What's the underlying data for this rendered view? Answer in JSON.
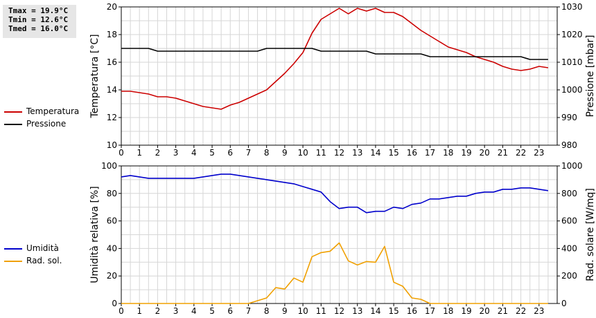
{
  "stats": {
    "tmax": "Tmax = 19.9°C",
    "tmin": "Tmin = 12.6°C",
    "tmed": "Tmed = 16.0°C"
  },
  "chart_data": [
    {
      "type": "line",
      "xlim": [
        0,
        24
      ],
      "xticks": [
        0,
        1,
        2,
        3,
        4,
        5,
        6,
        7,
        8,
        9,
        10,
        11,
        12,
        13,
        14,
        15,
        16,
        17,
        18,
        19,
        20,
        21,
        22,
        23
      ],
      "grid": true,
      "legend_placement": "left",
      "y_left": {
        "label": "Temperatura [°C]",
        "ylim": [
          10,
          20
        ],
        "ticks": [
          10,
          12,
          14,
          16,
          18,
          20
        ]
      },
      "y_right": {
        "label": "Pressione [mbar]",
        "ylim": [
          980,
          1030
        ],
        "ticks": [
          980,
          990,
          1000,
          1010,
          1020,
          1030
        ]
      },
      "series": [
        {
          "name": "Temperatura",
          "color": "#cc0000",
          "axis": "left",
          "x": [
            0,
            0.5,
            1,
            1.5,
            2,
            2.5,
            3,
            3.5,
            4,
            4.5,
            5,
            5.5,
            6,
            6.5,
            7,
            7.5,
            8,
            8.5,
            9,
            9.5,
            10,
            10.5,
            11,
            11.5,
            12,
            12.5,
            13,
            13.5,
            14,
            14.5,
            15,
            15.5,
            16,
            16.5,
            17,
            17.5,
            18,
            18.5,
            19,
            19.5,
            20,
            20.5,
            21,
            21.5,
            22,
            22.5,
            23,
            23.5
          ],
          "values": [
            13.9,
            13.9,
            13.8,
            13.7,
            13.5,
            13.5,
            13.4,
            13.2,
            13.0,
            12.8,
            12.7,
            12.6,
            12.9,
            13.1,
            13.4,
            13.7,
            14.0,
            14.6,
            15.2,
            15.9,
            16.7,
            18.1,
            19.1,
            19.5,
            19.9,
            19.5,
            19.9,
            19.7,
            19.9,
            19.6,
            19.6,
            19.3,
            18.8,
            18.3,
            17.9,
            17.5,
            17.1,
            16.9,
            16.7,
            16.4,
            16.2,
            16.0,
            15.7,
            15.5,
            15.4,
            15.5,
            15.7,
            15.6
          ]
        },
        {
          "name": "Pressione",
          "color": "#000000",
          "axis": "right",
          "x": [
            0,
            0.5,
            1,
            1.5,
            2,
            2.5,
            3,
            3.5,
            4,
            4.5,
            5,
            5.5,
            6,
            6.5,
            7,
            7.5,
            8,
            8.5,
            9,
            9.5,
            10,
            10.5,
            11,
            11.5,
            12,
            12.5,
            13,
            13.5,
            14,
            14.5,
            15,
            15.5,
            16,
            16.5,
            17,
            17.5,
            18,
            18.5,
            19,
            19.5,
            20,
            20.5,
            21,
            21.5,
            22,
            22.5,
            23,
            23.5
          ],
          "values": [
            1015,
            1015,
            1015,
            1015,
            1014,
            1014,
            1014,
            1014,
            1014,
            1014,
            1014,
            1014,
            1014,
            1014,
            1014,
            1014,
            1015,
            1015,
            1015,
            1015,
            1015,
            1015,
            1014,
            1014,
            1014,
            1014,
            1014,
            1014,
            1013,
            1013,
            1013,
            1013,
            1013,
            1013,
            1012,
            1012,
            1012,
            1012,
            1012,
            1012,
            1012,
            1012,
            1012,
            1012,
            1012,
            1011,
            1011,
            1011
          ]
        }
      ]
    },
    {
      "type": "line",
      "xlim": [
        0,
        24
      ],
      "xticks": [
        0,
        1,
        2,
        3,
        4,
        5,
        6,
        7,
        8,
        9,
        10,
        11,
        12,
        13,
        14,
        15,
        16,
        17,
        18,
        19,
        20,
        21,
        22,
        23
      ],
      "grid": true,
      "legend_placement": "left",
      "y_left": {
        "label": "Umidità relativa [%]",
        "ylim": [
          0,
          100
        ],
        "ticks": [
          0,
          20,
          40,
          60,
          80,
          100
        ]
      },
      "y_right": {
        "label": "Rad. solare [W/mq]",
        "ylim": [
          0,
          1000
        ],
        "ticks": [
          0,
          200,
          400,
          600,
          800,
          1000
        ]
      },
      "series": [
        {
          "name": "Umidità",
          "color": "#0000cc",
          "axis": "left",
          "x": [
            0,
            0.5,
            1,
            1.5,
            2,
            2.5,
            3,
            3.5,
            4,
            4.5,
            5,
            5.5,
            6,
            6.5,
            7,
            7.5,
            8,
            8.5,
            9,
            9.5,
            10,
            10.5,
            11,
            11.5,
            12,
            12.5,
            13,
            13.5,
            14,
            14.5,
            15,
            15.5,
            16,
            16.5,
            17,
            17.5,
            18,
            18.5,
            19,
            19.5,
            20,
            20.5,
            21,
            21.5,
            22,
            22.5,
            23,
            23.5
          ],
          "values": [
            92,
            93,
            92,
            91,
            91,
            91,
            91,
            91,
            91,
            92,
            93,
            94,
            94,
            93,
            92,
            91,
            90,
            89,
            88,
            87,
            85,
            83,
            81,
            74,
            69,
            70,
            70,
            66,
            67,
            67,
            70,
            69,
            72,
            73,
            76,
            76,
            77,
            78,
            78,
            80,
            81,
            81,
            83,
            83,
            84,
            84,
            83,
            82
          ]
        },
        {
          "name": "Rad. sol.",
          "color": "#f0a000",
          "axis": "right",
          "x": [
            0,
            0.5,
            1,
            1.5,
            2,
            2.5,
            3,
            3.5,
            4,
            4.5,
            5,
            5.5,
            6,
            6.5,
            7,
            7.5,
            8,
            8.5,
            9,
            9.5,
            10,
            10.5,
            11,
            11.5,
            12,
            12.5,
            13,
            13.5,
            14,
            14.5,
            15,
            15.5,
            16,
            16.5,
            17,
            17.5,
            18,
            18.5,
            19,
            19.5,
            20,
            20.5,
            21,
            21.5,
            22,
            22.5,
            23,
            23.5
          ],
          "values": [
            0,
            0,
            0,
            0,
            0,
            0,
            0,
            0,
            0,
            0,
            0,
            0,
            0,
            0,
            0,
            20,
            40,
            115,
            105,
            185,
            155,
            340,
            370,
            380,
            440,
            310,
            280,
            305,
            300,
            415,
            155,
            125,
            40,
            30,
            0,
            0,
            0,
            0,
            0,
            0,
            0,
            0,
            0,
            0,
            0,
            0,
            0,
            0
          ]
        }
      ]
    }
  ]
}
